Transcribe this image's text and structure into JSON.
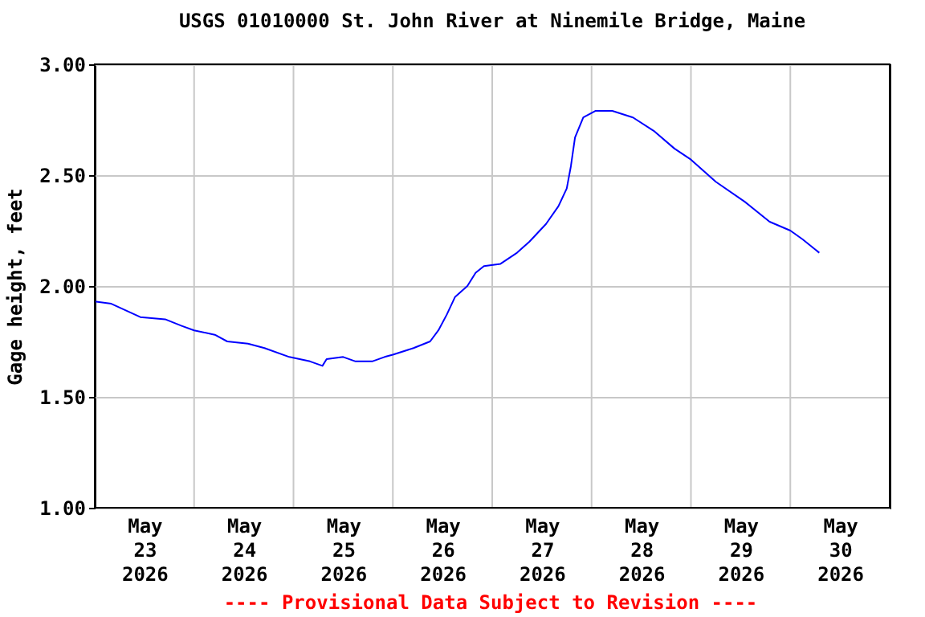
{
  "chart_data": {
    "type": "line",
    "title": "USGS 01010000 St. John River at Ninemile Bridge, Maine",
    "ylabel": "Gage height, feet",
    "annotations": [
      "---- Provisional Data Subject to Revision ----"
    ],
    "x": [
      "2026-05-23T00:00",
      "2026-05-23T04:00",
      "2026-05-23T11:00",
      "2026-05-23T17:00",
      "2026-05-23T21:00",
      "2026-05-24T00:00",
      "2026-05-24T05:00",
      "2026-05-24T08:00",
      "2026-05-24T13:00",
      "2026-05-24T17:00",
      "2026-05-24T23:00",
      "2026-05-25T04:00",
      "2026-05-25T07:00",
      "2026-05-25T08:00",
      "2026-05-25T12:00",
      "2026-05-25T15:00",
      "2026-05-25T19:00",
      "2026-05-25T22:00",
      "2026-05-26T00:00",
      "2026-05-26T05:00",
      "2026-05-26T09:00",
      "2026-05-26T11:00",
      "2026-05-26T13:00",
      "2026-05-26T15:00",
      "2026-05-26T18:00",
      "2026-05-26T20:00",
      "2026-05-26T22:00",
      "2026-05-27T02:00",
      "2026-05-27T06:00",
      "2026-05-27T09:00",
      "2026-05-27T13:00",
      "2026-05-27T16:00",
      "2026-05-27T18:00",
      "2026-05-27T19:00",
      "2026-05-27T20:00",
      "2026-05-27T22:00",
      "2026-05-28T01:00",
      "2026-05-28T05:00",
      "2026-05-28T10:00",
      "2026-05-28T15:00",
      "2026-05-28T20:00",
      "2026-05-29T00:00",
      "2026-05-29T06:00",
      "2026-05-29T13:00",
      "2026-05-29T19:00",
      "2026-05-30T00:00",
      "2026-05-30T03:00",
      "2026-05-30T07:00"
    ],
    "series": [
      {
        "color": "#0000ff",
        "values": [
          1.93,
          1.92,
          1.86,
          1.85,
          1.82,
          1.8,
          1.78,
          1.75,
          1.74,
          1.72,
          1.68,
          1.66,
          1.64,
          1.67,
          1.68,
          1.66,
          1.66,
          1.68,
          1.69,
          1.72,
          1.75,
          1.8,
          1.87,
          1.95,
          2.0,
          2.06,
          2.09,
          2.1,
          2.15,
          2.2,
          2.28,
          2.36,
          2.44,
          2.54,
          2.67,
          2.76,
          2.79,
          2.79,
          2.76,
          2.7,
          2.62,
          2.57,
          2.47,
          2.38,
          2.29,
          2.25,
          2.21,
          2.15
        ]
      }
    ],
    "xlim": [
      "2026-05-23T00:00",
      "2026-05-31T00:00"
    ],
    "xticks": [
      {
        "value": "2026-05-23T12:00",
        "label": "May\n23\n2026"
      },
      {
        "value": "2026-05-24T12:00",
        "label": "May\n24\n2026"
      },
      {
        "value": "2026-05-25T12:00",
        "label": "May\n25\n2026"
      },
      {
        "value": "2026-05-26T12:00",
        "label": "May\n26\n2026"
      },
      {
        "value": "2026-05-27T12:00",
        "label": "May\n27\n2026"
      },
      {
        "value": "2026-05-28T12:00",
        "label": "May\n28\n2026"
      },
      {
        "value": "2026-05-29T12:00",
        "label": "May\n29\n2026"
      },
      {
        "value": "2026-05-30T12:00",
        "label": "May\n30\n2026"
      },
      {
        "value": "2026-05-24T00:00",
        "label": null
      },
      {
        "value": "2026-05-25T00:00",
        "label": null
      },
      {
        "value": "2026-05-26T00:00",
        "label": null
      },
      {
        "value": "2026-05-27T00:00",
        "label": null
      },
      {
        "value": "2026-05-28T00:00",
        "label": null
      },
      {
        "value": "2026-05-29T00:00",
        "label": null
      },
      {
        "value": "2026-05-30T00:00",
        "label": null
      }
    ],
    "ylim": [
      1.0,
      3.0
    ],
    "yticks": [
      {
        "value": 1.0,
        "label": "1.00"
      },
      {
        "value": 1.5,
        "label": "1.50"
      },
      {
        "value": 2.0,
        "label": "2.00"
      },
      {
        "value": 2.5,
        "label": "2.50"
      },
      {
        "value": 3.0,
        "label": "3.00"
      }
    ],
    "grid": true,
    "marker": "none",
    "line_style": "solid"
  }
}
